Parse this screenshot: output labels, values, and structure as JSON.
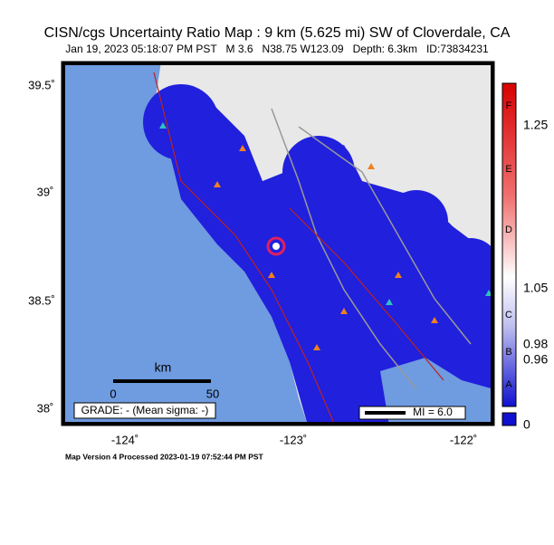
{
  "header": {
    "title": "CISN/cgs Uncertainty Ratio Map : 9 km (5.625 mi) SW of Cloverdale, CA",
    "subtitle": "Jan 19, 2023 05:18:07 PM PST   M 3.6   N38.75 W123.09   Depth: 6.3km   ID:73834231"
  },
  "map": {
    "lat_labels": [
      "39.5˚",
      "39˚",
      "38.5˚",
      "38˚"
    ],
    "lon_labels": [
      "-124˚",
      "-123˚",
      "-122˚"
    ],
    "scale_bar": {
      "unit": "km",
      "start": "0",
      "end": "50"
    },
    "grade": "GRADE: - (Mean sigma: -)",
    "intensity": "MI = 6.0"
  },
  "colorbar": {
    "letters": [
      "F",
      "E",
      "D",
      "C",
      "B",
      "A"
    ],
    "ticks": [
      "1.25",
      "1.05",
      "0.98",
      "0.96",
      "0"
    ]
  },
  "footer": "Map Version 4 Processed 2023-01-19 07:52:44 PM PST"
}
